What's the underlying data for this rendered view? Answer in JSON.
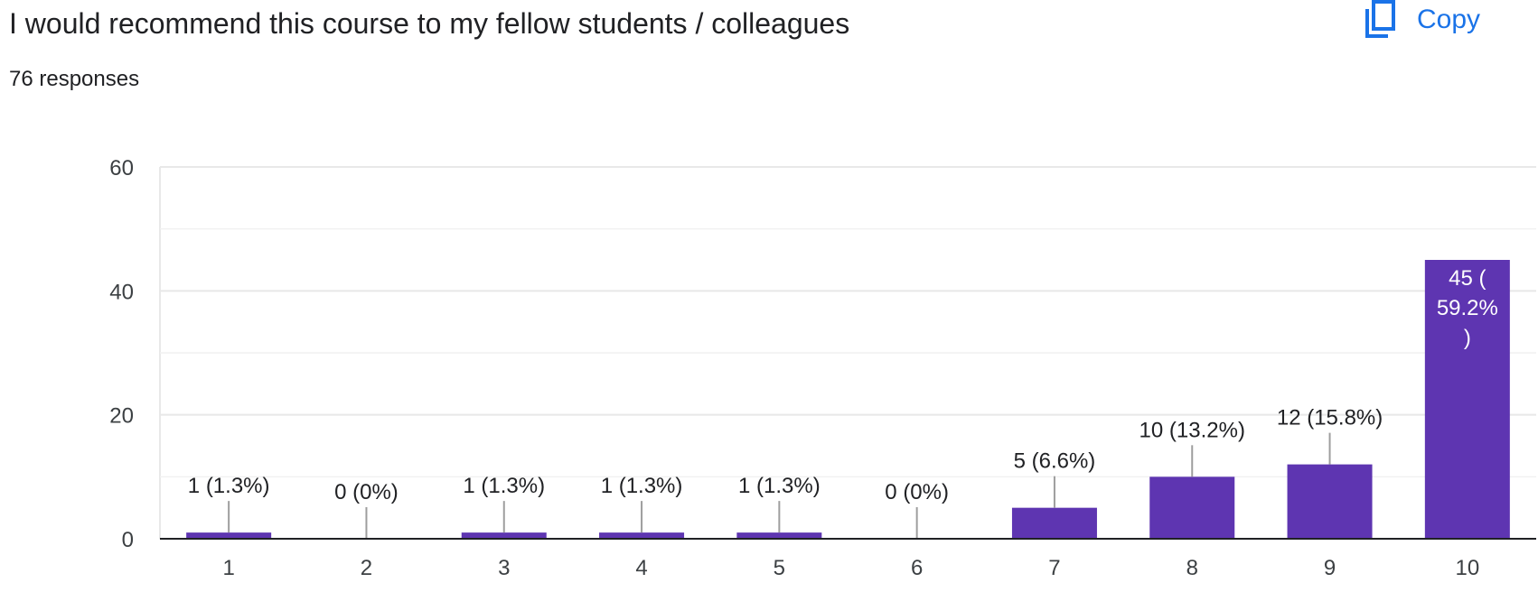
{
  "header": {
    "title": "I would recommend this course to my fellow students / colleagues",
    "responses": "76 responses",
    "copy_label": "Copy",
    "copy_icon": "copy-icon"
  },
  "colors": {
    "bar": "#5e35b1",
    "grid": "#e8e8e8",
    "axis": "#202124",
    "accent": "#1a73e8"
  },
  "chart_data": {
    "type": "bar",
    "title": "I would recommend this course to my fellow students / colleagues",
    "xlabel": "",
    "ylabel": "",
    "ylim": [
      0,
      60
    ],
    "yticks": [
      0,
      20,
      40,
      60
    ],
    "grid": true,
    "categories": [
      "1",
      "2",
      "3",
      "4",
      "5",
      "6",
      "7",
      "8",
      "9",
      "10"
    ],
    "values": [
      1,
      0,
      1,
      1,
      1,
      0,
      5,
      10,
      12,
      45
    ],
    "labels": [
      "1 (1.3%)",
      "0 (0%)",
      "1 (1.3%)",
      "1 (1.3%)",
      "1 (1.3%)",
      "0 (0%)",
      "5 (6.6%)",
      "10 (13.2%)",
      "12 (15.8%)",
      "45 (59.2%)"
    ],
    "inside_label_lines": [
      "45 (",
      "59.2%",
      ")"
    ]
  }
}
